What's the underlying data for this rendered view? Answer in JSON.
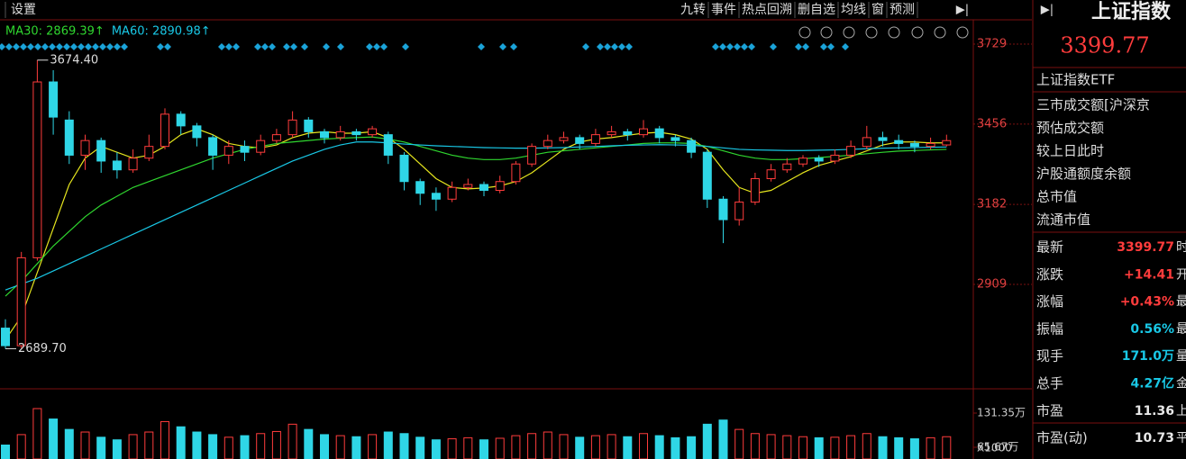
{
  "toolbar": {
    "left": [
      "设置"
    ],
    "right": [
      "九转",
      "事件",
      "热点回溯",
      "删自选",
      "均线",
      "窗",
      "预测"
    ]
  },
  "chart_data": {
    "type": "candlestick",
    "ma_legend": [
      {
        "label": "MA30: 2869.39↑",
        "color": "#2fd62f"
      },
      {
        "label": "MA60: 2890.98↑",
        "color": "#19c8e6"
      }
    ],
    "ylim": [
      2559,
      3812
    ],
    "yticks": [
      3729,
      3456,
      3182,
      2909
    ],
    "annotations": [
      {
        "index": 2,
        "value": 3674.4,
        "label": "3674.40"
      },
      {
        "index": 0,
        "value": 2689.7,
        "label": "2689.70"
      }
    ],
    "open": [
      2760,
      2700,
      3000,
      3600,
      3470,
      3350,
      3400,
      3330,
      3300,
      3340,
      3380,
      3490,
      3450,
      3410,
      3350,
      3380,
      3360,
      3400,
      3420,
      3470,
      3430,
      3410,
      3430,
      3420,
      3420,
      3350,
      3260,
      3220,
      3200,
      3240,
      3250,
      3230,
      3260,
      3320,
      3380,
      3400,
      3410,
      3390,
      3420,
      3430,
      3420,
      3440,
      3410,
      3400,
      3360,
      3200,
      3130,
      3190,
      3270,
      3300,
      3320,
      3340,
      3330,
      3350,
      3380,
      3410,
      3400,
      3390,
      3380,
      3385
    ],
    "high": [
      2790,
      3020,
      3674.4,
      3640,
      3500,
      3420,
      3410,
      3360,
      3370,
      3420,
      3510,
      3500,
      3460,
      3420,
      3400,
      3400,
      3420,
      3440,
      3500,
      3480,
      3440,
      3450,
      3440,
      3450,
      3430,
      3360,
      3270,
      3240,
      3260,
      3270,
      3260,
      3280,
      3330,
      3390,
      3420,
      3430,
      3420,
      3440,
      3450,
      3440,
      3470,
      3450,
      3420,
      3410,
      3370,
      3210,
      3240,
      3290,
      3320,
      3340,
      3350,
      3350,
      3370,
      3400,
      3450,
      3430,
      3420,
      3400,
      3410,
      3420
    ],
    "low": [
      2689.7,
      2690,
      2990,
      3420,
      3320,
      3300,
      3290,
      3270,
      3290,
      3330,
      3370,
      3420,
      3380,
      3300,
      3320,
      3330,
      3350,
      3390,
      3410,
      3410,
      3390,
      3400,
      3400,
      3410,
      3320,
      3230,
      3180,
      3160,
      3190,
      3230,
      3210,
      3220,
      3250,
      3310,
      3370,
      3390,
      3370,
      3380,
      3410,
      3400,
      3410,
      3390,
      3380,
      3340,
      3170,
      3050,
      3110,
      3180,
      3260,
      3290,
      3310,
      3310,
      3320,
      3340,
      3370,
      3380,
      3370,
      3360,
      3370,
      3380
    ],
    "close": [
      2700,
      3000,
      3600,
      3480,
      3350,
      3400,
      3330,
      3300,
      3340,
      3380,
      3490,
      3450,
      3410,
      3350,
      3380,
      3360,
      3400,
      3420,
      3470,
      3430,
      3410,
      3430,
      3420,
      3440,
      3350,
      3260,
      3220,
      3200,
      3240,
      3250,
      3230,
      3260,
      3320,
      3380,
      3400,
      3410,
      3390,
      3420,
      3430,
      3420,
      3440,
      3410,
      3400,
      3360,
      3200,
      3130,
      3190,
      3270,
      3300,
      3320,
      3340,
      3330,
      3350,
      3380,
      3410,
      3400,
      3390,
      3380,
      3390,
      3399.77
    ],
    "ma_lines": [
      {
        "color": "#e6e61e",
        "values": [
          2720,
          2800,
          2950,
          3100,
          3250,
          3340,
          3380,
          3360,
          3340,
          3350,
          3380,
          3420,
          3440,
          3420,
          3390,
          3380,
          3375,
          3385,
          3410,
          3425,
          3430,
          3425,
          3425,
          3430,
          3410,
          3370,
          3320,
          3270,
          3240,
          3235,
          3238,
          3245,
          3260,
          3290,
          3330,
          3370,
          3395,
          3405,
          3410,
          3418,
          3425,
          3428,
          3420,
          3405,
          3370,
          3300,
          3240,
          3220,
          3230,
          3260,
          3290,
          3315,
          3330,
          3345,
          3365,
          3385,
          3395,
          3395,
          3392,
          3392
        ]
      },
      {
        "color": "#2fd62f",
        "values": [
          2869,
          2920,
          2980,
          3040,
          3090,
          3140,
          3180,
          3210,
          3240,
          3260,
          3280,
          3300,
          3320,
          3340,
          3355,
          3370,
          3380,
          3390,
          3395,
          3400,
          3405,
          3408,
          3410,
          3412,
          3405,
          3395,
          3380,
          3365,
          3350,
          3340,
          3335,
          3335,
          3340,
          3350,
          3360,
          3365,
          3370,
          3375,
          3380,
          3385,
          3390,
          3392,
          3392,
          3390,
          3380,
          3365,
          3350,
          3340,
          3335,
          3335,
          3338,
          3342,
          3346,
          3350,
          3355,
          3360,
          3364,
          3366,
          3368,
          3370
        ]
      },
      {
        "color": "#19c8e6",
        "values": [
          2890,
          2910,
          2930,
          2955,
          2980,
          3005,
          3030,
          3055,
          3080,
          3105,
          3130,
          3155,
          3180,
          3205,
          3230,
          3255,
          3280,
          3305,
          3330,
          3350,
          3370,
          3385,
          3395,
          3395,
          3392,
          3388,
          3385,
          3382,
          3380,
          3378,
          3376,
          3375,
          3374,
          3374,
          3375,
          3376,
          3378,
          3380,
          3382,
          3384,
          3385,
          3386,
          3385,
          3384,
          3380,
          3375,
          3370,
          3368,
          3367,
          3366,
          3366,
          3367,
          3368,
          3370,
          3372,
          3374,
          3375,
          3376,
          3377,
          3378
        ]
      }
    ],
    "volume": {
      "values": [
        70,
        90,
        140,
        120,
        100,
        95,
        85,
        80,
        90,
        95,
        115,
        105,
        95,
        90,
        85,
        88,
        92,
        96,
        110,
        100,
        90,
        88,
        86,
        90,
        95,
        92,
        85,
        80,
        82,
        84,
        80,
        83,
        88,
        92,
        95,
        90,
        85,
        88,
        90,
        86,
        92,
        88,
        84,
        86,
        110,
        118,
        100,
        92,
        90,
        88,
        86,
        84,
        85,
        88,
        92,
        86,
        84,
        82,
        84,
        86
      ],
      "ylim": [
        43.2,
        178
      ],
      "yticks": [
        {
          "value": 131.35,
          "label": "131.35万"
        },
        {
          "value": 65.67,
          "label": "65.67万"
        }
      ],
      "unit_label": "X1000"
    }
  },
  "panel": {
    "title": "上证指数",
    "price": "3399.77",
    "etf": "上证指数ETF",
    "items": [
      "三市成交额[沪深京",
      "预估成交额",
      "较上日此时",
      "沪股通额度余额",
      "总市值",
      "流通市值"
    ],
    "stats": [
      {
        "label": "最新",
        "value": "3399.77",
        "tail": "时",
        "color": "#ff3c3c"
      },
      {
        "label": "涨跌",
        "value": "+14.41",
        "tail": "开",
        "color": "#ff3c3c"
      },
      {
        "label": "涨幅",
        "value": "+0.43%",
        "tail": "最",
        "color": "#ff3c3c"
      },
      {
        "label": "振幅",
        "value": "0.56%",
        "tail": "最",
        "color": "#19c8e6"
      },
      {
        "label": "现手",
        "value": "171.0万",
        "tail": "量",
        "color": "#19c8e6"
      },
      {
        "label": "总手",
        "value": "4.27亿",
        "tail": "金",
        "color": "#19c8e6"
      },
      {
        "label": "市盈",
        "value": "11.36",
        "tail": "上",
        "color": "#e8e8e8"
      },
      {
        "label": "市盈(动)",
        "value": "10.73",
        "tail": "平",
        "color": "#e8e8e8"
      }
    ]
  }
}
